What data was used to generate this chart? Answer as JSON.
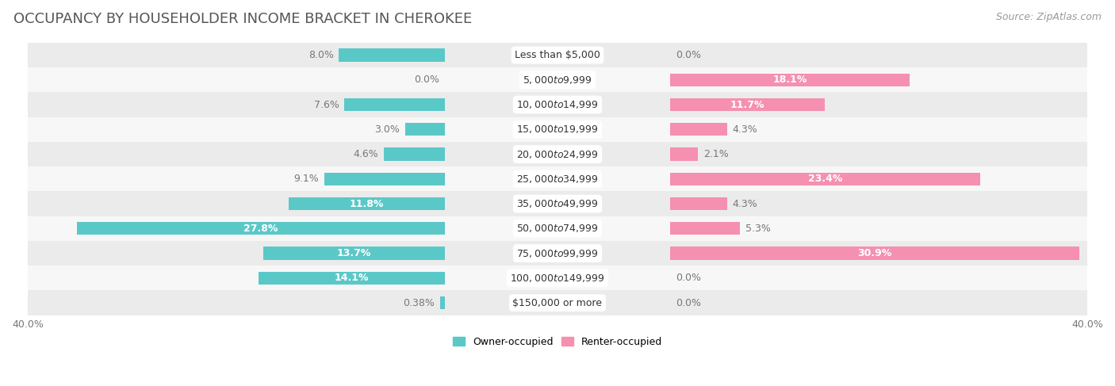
{
  "title": "OCCUPANCY BY HOUSEHOLDER INCOME BRACKET IN CHEROKEE",
  "source": "Source: ZipAtlas.com",
  "categories": [
    "Less than $5,000",
    "$5,000 to $9,999",
    "$10,000 to $14,999",
    "$15,000 to $19,999",
    "$20,000 to $24,999",
    "$25,000 to $34,999",
    "$35,000 to $49,999",
    "$50,000 to $74,999",
    "$75,000 to $99,999",
    "$100,000 to $149,999",
    "$150,000 or more"
  ],
  "owner_values": [
    8.0,
    0.0,
    7.6,
    3.0,
    4.6,
    9.1,
    11.8,
    27.8,
    13.7,
    14.1,
    0.38
  ],
  "renter_values": [
    0.0,
    18.1,
    11.7,
    4.3,
    2.1,
    23.4,
    4.3,
    5.3,
    30.9,
    0.0,
    0.0
  ],
  "owner_color": "#5bc8c8",
  "renter_color": "#f590b0",
  "renter_color_light": "#f9c0d4",
  "background_row_odd": "#ebebeb",
  "background_row_even": "#f7f7f7",
  "axis_max": 40.0,
  "bar_height": 0.52,
  "title_fontsize": 13,
  "source_fontsize": 9,
  "value_label_fontsize": 9,
  "category_fontsize": 9,
  "legend_fontsize": 9,
  "axis_label_fontsize": 9
}
